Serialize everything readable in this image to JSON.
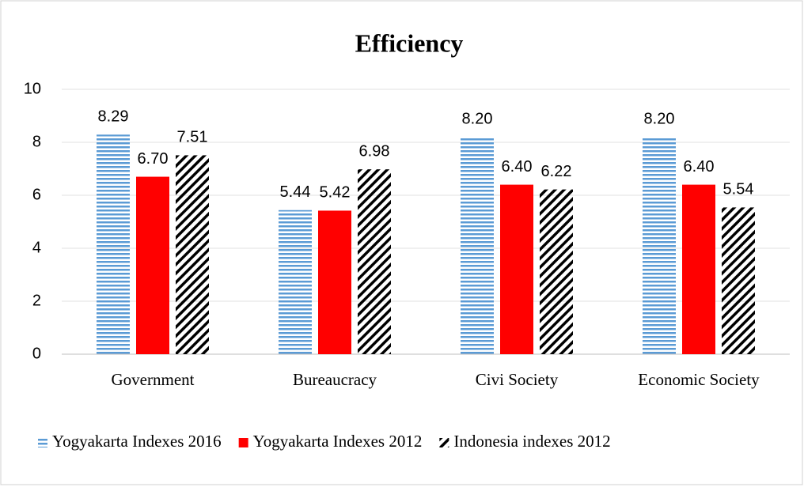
{
  "chart_data": {
    "type": "bar",
    "title": "Efficiency",
    "categories": [
      "Government",
      "Bureaucracy",
      "Civi Society",
      "Economic Society"
    ],
    "series": [
      {
        "name": "Yogyakarta Indexes 2016",
        "color": "#5b9bd5",
        "pattern": "horizontal",
        "values": [
          8.29,
          5.44,
          8.2,
          8.2
        ],
        "value_labels": [
          "8.29",
          "5.44",
          "8.20",
          "8.20"
        ]
      },
      {
        "name": "Yogyakarta Indexes 2012",
        "color": "#ff0000",
        "pattern": "solid",
        "values": [
          6.7,
          5.42,
          6.4,
          6.4
        ],
        "value_labels": [
          "6.70",
          "5.42",
          "6.40",
          "6.40"
        ]
      },
      {
        "name": "Indonesia indexes 2012",
        "color": "#000000",
        "pattern": "diagonal",
        "values": [
          7.51,
          6.98,
          6.22,
          5.54
        ],
        "value_labels": [
          "7.51",
          "6.98",
          "6.22",
          "5.54"
        ]
      }
    ],
    "ylim": [
      0,
      10
    ],
    "yticks": [
      0,
      2,
      4,
      6,
      8,
      10
    ],
    "grid": true,
    "legend": "bottom"
  }
}
